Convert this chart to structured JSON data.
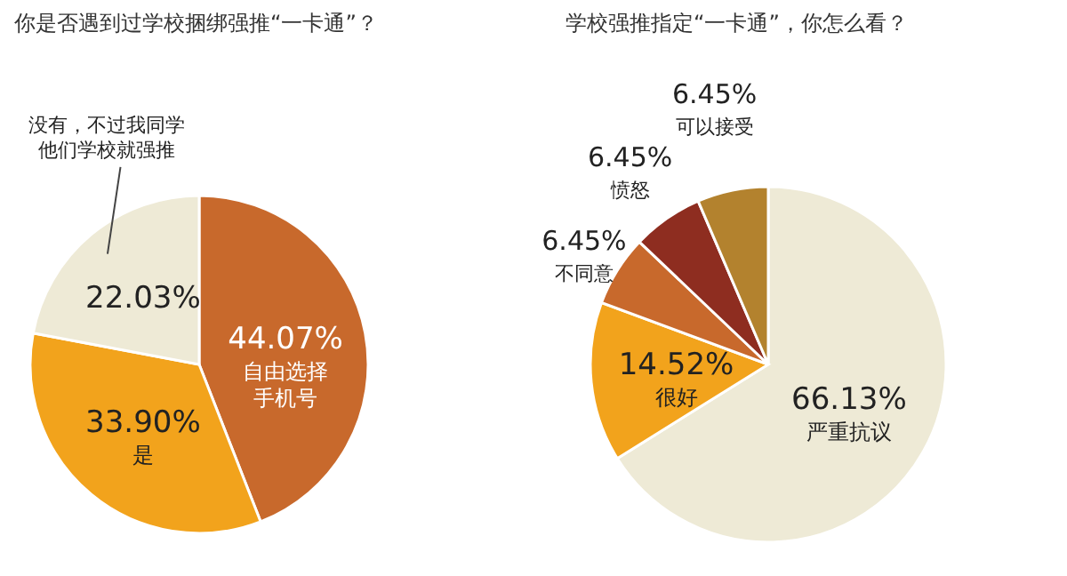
{
  "chart_data": [
    {
      "type": "pie",
      "title": "你是否遇到过学校捆绑强推“一卡通”？",
      "categories": [
        "自由选择手机号",
        "是",
        "没有，不过我同学他们学校就强推"
      ],
      "values": [
        44.07,
        33.9,
        22.03
      ],
      "value_labels": [
        "44.07%",
        "33.90%",
        "22.03%"
      ],
      "colors": [
        "#c8692c",
        "#f2a31c",
        "#eeead6"
      ]
    },
    {
      "type": "pie",
      "title": "学校强推指定“一卡通”，你怎么看？",
      "categories": [
        "严重抗议",
        "很好",
        "不同意",
        "愤怒",
        "可以接受"
      ],
      "values": [
        66.13,
        14.52,
        6.45,
        6.45,
        6.45
      ],
      "value_labels": [
        "66.13%",
        "14.52%",
        "6.45%",
        "6.45%",
        "6.45%"
      ],
      "colors": [
        "#eeead6",
        "#f2a31c",
        "#c8692c",
        "#8e2d20",
        "#b3822e"
      ]
    }
  ]
}
